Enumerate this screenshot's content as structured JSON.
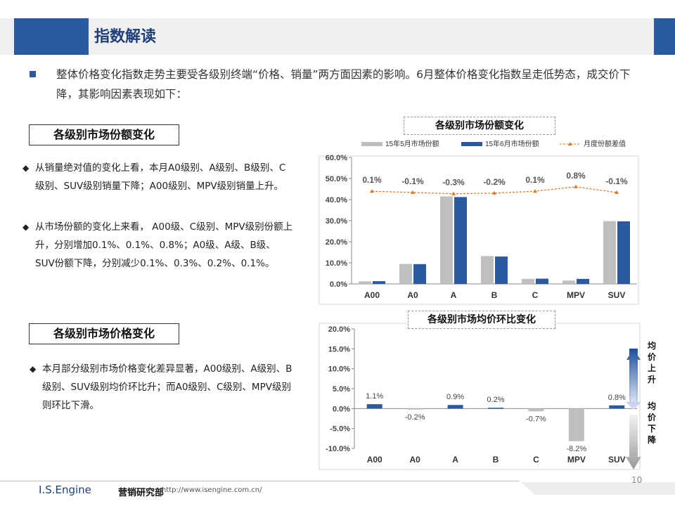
{
  "header": {
    "title": "指数解读"
  },
  "intro": "整体价格变化指数走势主要受各级别终端“价格、销量”两方面因素的影响。6月整体价格变化指数呈走低势态，成交价下降，其影响因素表现如下：",
  "sections": {
    "share": {
      "title": "各级别市场份额变化",
      "bullets": [
        "从销量绝对值的变化上看，本月A0级别、A级别、B级别、C级别、SUV级别销量下降；A00级别、MPV级别销量上升。",
        "从市场份额的变化上来看， A00级、C级别、MPV级别份额上升，分别增加0.1%、0.1%、0.8%；A0级、A级、B级、SUV份额下降，分别减少0.1%、0.3%、0.2%、0.1%。"
      ]
    },
    "price": {
      "title": "各级别市场价格变化",
      "bullets": [
        "本月部分级别市场价格变化差异显著，A00级别、A级别、B级别、SUV级别均价环比升；而A0级别、C级别、MPV级别则环比下滑。"
      ]
    }
  },
  "chart_data": [
    {
      "type": "bar",
      "title": "各级别市场份额变化",
      "categories": [
        "A00",
        "A0",
        "A",
        "B",
        "C",
        "MPV",
        "SUV"
      ],
      "series": [
        {
          "name": "15年5月市场份额",
          "values": [
            1.2,
            9.5,
            41.5,
            13.2,
            2.4,
            1.6,
            29.8
          ],
          "color": "#bfbfbf"
        },
        {
          "name": "15年6月市场份额",
          "values": [
            1.3,
            9.4,
            41.2,
            13.0,
            2.5,
            2.4,
            29.7
          ],
          "color": "#2c5aa0"
        },
        {
          "name": "月度份额差值",
          "type": "line",
          "values": [
            0.1,
            -0.1,
            -0.3,
            -0.2,
            0.1,
            0.8,
            -0.1
          ],
          "labels": [
            "0.1%",
            "-0.1%",
            "-0.3%",
            "-0.2%",
            "0.1%",
            "0.8%",
            "-0.1%"
          ],
          "color": "#e8731a"
        }
      ],
      "y_ticks": [
        "0.0%",
        "10.0%",
        "20.0%",
        "30.0%",
        "40.0%",
        "50.0%",
        "60.0%"
      ],
      "ylim": [
        0,
        60
      ],
      "legend_position": "top"
    },
    {
      "type": "bar",
      "title": "各级别市场均价环比变化",
      "categories": [
        "A00",
        "A0",
        "A",
        "B",
        "C",
        "MPV",
        "SUV"
      ],
      "series": [
        {
          "values": [
            1.1,
            -0.2,
            0.9,
            0.2,
            -0.7,
            -8.2,
            0.8
          ],
          "labels": [
            "1.1%",
            "-0.2%",
            "0.9%",
            "0.2%",
            "-0.7%",
            "-8.2%",
            "0.8%"
          ]
        }
      ],
      "y_ticks": [
        "-10.0%",
        "-5.0%",
        "0.0%",
        "5.0%",
        "10.0%",
        "15.0%",
        "20.0%"
      ],
      "ylim": [
        -10,
        20
      ],
      "colors": {
        "positive": "#2c5aa0",
        "negative": "#bfbfbf"
      }
    }
  ],
  "side_labels": {
    "up": "均价上升",
    "down": "均价下降"
  },
  "footer": {
    "brand": "I.S.Engine",
    "dept": "营销研究部",
    "url": "http://www.isengine.com.cn/",
    "page": "10"
  }
}
